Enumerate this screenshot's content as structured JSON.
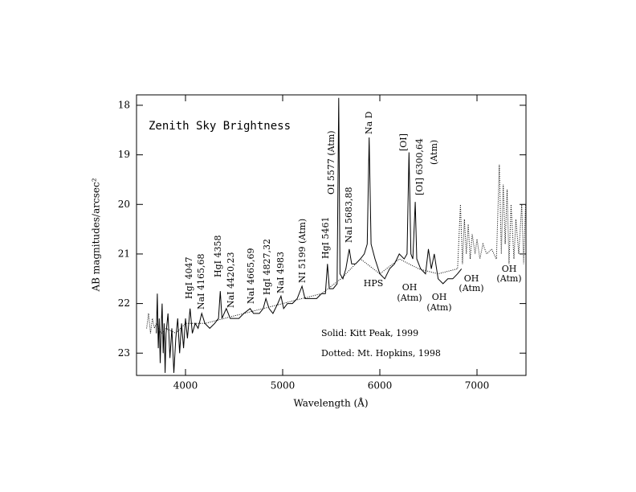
{
  "chart_data": {
    "type": "line",
    "title": "Zenith Sky Brightness",
    "x_label": "Wavelength (Å)",
    "y_label": "AB magnitudes/arcsec²",
    "xlim": [
      3496,
      7504
    ],
    "xticks": [
      4000,
      5000,
      6000,
      7000
    ],
    "ylim": [
      23.45,
      17.79
    ],
    "yticks": [
      18,
      19,
      20,
      21,
      22,
      23
    ],
    "series": [
      {
        "name": "Solid: Kitt Peak, 1999",
        "color": "#000000",
        "style": "solid",
        "x": [
          3700,
          3710,
          3720,
          3730,
          3740,
          3750,
          3760,
          3770,
          3780,
          3790,
          3800,
          3820,
          3840,
          3860,
          3880,
          3900,
          3920,
          3940,
          3960,
          3980,
          4000,
          4020,
          4047,
          4070,
          4100,
          4130,
          4167,
          4200,
          4250,
          4300,
          4340,
          4358,
          4375,
          4420,
          4460,
          4500,
          4550,
          4600,
          4665,
          4700,
          4760,
          4800,
          4827,
          4860,
          4900,
          4950,
          4983,
          5010,
          5050,
          5100,
          5150,
          5199,
          5230,
          5300,
          5350,
          5400,
          5440,
          5461,
          5480,
          5520,
          5560,
          5577,
          5590,
          5620,
          5650,
          5685,
          5710,
          5750,
          5800,
          5840,
          5870,
          5890,
          5910,
          5950,
          6000,
          6050,
          6100,
          6150,
          6200,
          6250,
          6280,
          6300,
          6320,
          6340,
          6364,
          6380,
          6420,
          6470,
          6500,
          6530,
          6560,
          6600,
          6650,
          6700,
          6750,
          6800,
          6840
        ],
        "values": [
          22.6,
          21.8,
          22.9,
          22.3,
          23.2,
          22.5,
          22.0,
          23.0,
          22.4,
          23.4,
          22.6,
          22.2,
          23.1,
          22.5,
          23.4,
          22.7,
          22.3,
          23.0,
          22.4,
          22.9,
          22.3,
          22.7,
          22.1,
          22.6,
          22.4,
          22.5,
          22.2,
          22.4,
          22.5,
          22.4,
          22.3,
          21.75,
          22.3,
          22.1,
          22.3,
          22.3,
          22.3,
          22.2,
          22.1,
          22.2,
          22.2,
          22.1,
          21.9,
          22.1,
          22.2,
          22.0,
          21.85,
          22.1,
          22.0,
          22.0,
          21.9,
          21.65,
          21.9,
          21.9,
          21.9,
          21.8,
          21.8,
          21.2,
          21.7,
          21.7,
          21.6,
          17.85,
          21.4,
          21.5,
          21.3,
          20.9,
          21.2,
          21.2,
          21.1,
          21.0,
          20.8,
          18.65,
          20.8,
          21.1,
          21.4,
          21.5,
          21.3,
          21.2,
          21.0,
          21.1,
          21.0,
          18.95,
          21.0,
          21.1,
          19.95,
          21.1,
          21.3,
          21.4,
          20.9,
          21.3,
          21.0,
          21.5,
          21.6,
          21.5,
          21.5,
          21.4,
          21.3
        ]
      },
      {
        "name": "Dotted: Mt. Hopkins, 1998",
        "color": "#000000",
        "style": "dotted",
        "x": [
          3600,
          3620,
          3640,
          3660,
          3680,
          3700,
          3750,
          3800,
          3900,
          4000,
          4200,
          4400,
          4600,
          4800,
          5000,
          5200,
          5400,
          5600,
          5800,
          6000,
          6200,
          6400,
          6600,
          6800,
          6830,
          6850,
          6870,
          6890,
          6910,
          6930,
          6950,
          6980,
          7000,
          7030,
          7060,
          7100,
          7150,
          7200,
          7230,
          7250,
          7270,
          7290,
          7310,
          7330,
          7350,
          7380,
          7400,
          7430,
          7460,
          7480,
          7500
        ],
        "values": [
          22.5,
          22.2,
          22.6,
          22.3,
          22.5,
          22.4,
          22.6,
          22.5,
          22.6,
          22.4,
          22.4,
          22.3,
          22.2,
          22.1,
          22.0,
          21.9,
          21.8,
          21.5,
          21.1,
          21.4,
          21.1,
          21.3,
          21.4,
          21.3,
          20.0,
          21.2,
          20.3,
          21.0,
          20.4,
          21.1,
          20.6,
          21.0,
          20.7,
          21.1,
          20.8,
          21.0,
          20.9,
          21.1,
          19.2,
          21.0,
          19.6,
          20.8,
          19.7,
          21.2,
          20.0,
          21.1,
          20.3,
          21.0,
          20.0,
          21.2,
          20.0
        ]
      }
    ],
    "annotations": [
      "HgI 4047",
      "NaI 4165,68",
      "HgI 4358",
      "NaI 4420,23",
      "NaI 4665,69",
      "HgI 4827,32",
      "NaI 4983",
      "NI 5199 (Atm)",
      "HgI 5461",
      "OI 5577 (Atm)",
      "NaI 5683,88",
      "Na D",
      "[OI]",
      "[OI] 6300,64",
      "(Atm)",
      "HPS",
      "OH",
      "(Atm)",
      "OH",
      "(Atm)",
      "OH",
      "(Atm)",
      "OH",
      "(Atm)"
    ]
  }
}
